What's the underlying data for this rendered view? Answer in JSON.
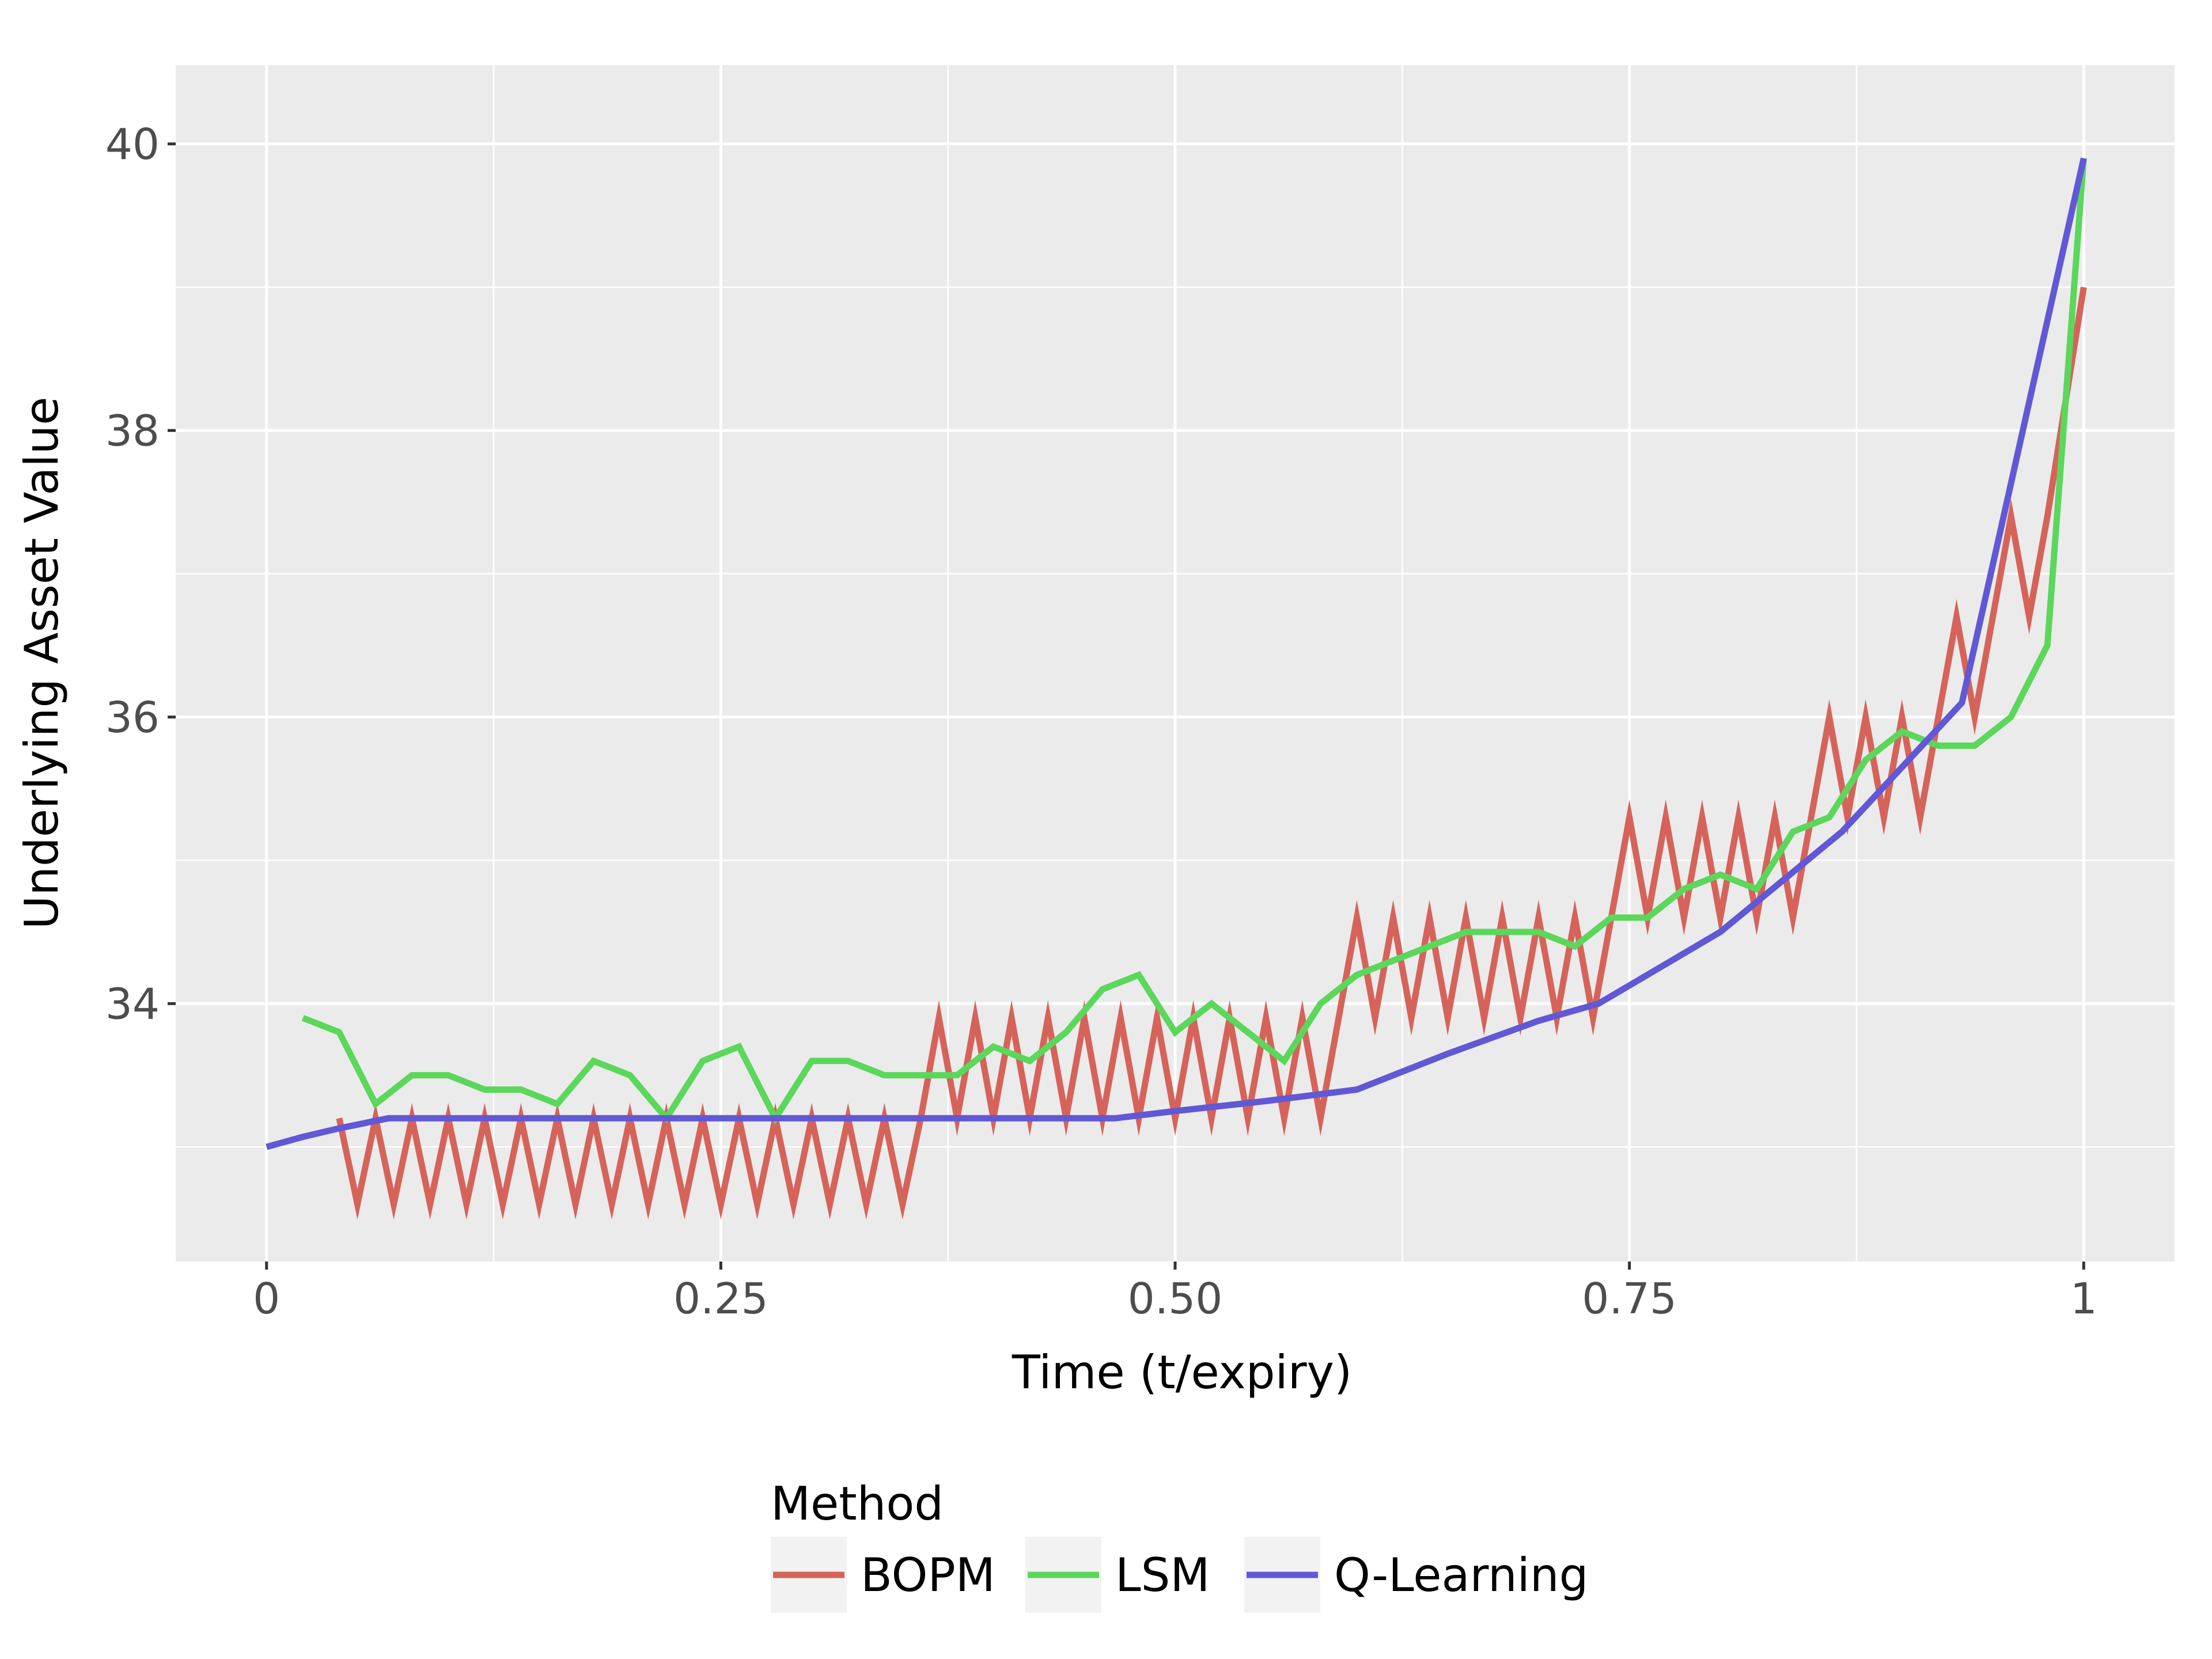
{
  "chart_data": {
    "type": "line",
    "xlabel": "Time (t/expiry)",
    "ylabel": "Underlying Asset Value",
    "xlim": [
      -0.05,
      1.05
    ],
    "ylim": [
      32.2,
      40.55
    ],
    "x_ticks": [
      0,
      0.25,
      0.5,
      0.75,
      1
    ],
    "x_tick_labels": [
      "0",
      "0.25",
      "0.50",
      "0.75",
      "1"
    ],
    "y_ticks": [
      34,
      36,
      38,
      40
    ],
    "y_tick_labels": [
      "34",
      "36",
      "38",
      "40"
    ],
    "grid": true,
    "legend": {
      "title": "Method",
      "position": "bottom"
    },
    "series": [
      {
        "name": "BOPM",
        "color": "#D6635A",
        "x": [
          0.04,
          0.05,
          0.06,
          0.07,
          0.08,
          0.09,
          0.1,
          0.11,
          0.12,
          0.13,
          0.14,
          0.15,
          0.16,
          0.17,
          0.18,
          0.19,
          0.2,
          0.21,
          0.22,
          0.23,
          0.24,
          0.25,
          0.26,
          0.27,
          0.28,
          0.29,
          0.3,
          0.31,
          0.32,
          0.33,
          0.34,
          0.35,
          0.36,
          0.37,
          0.38,
          0.39,
          0.4,
          0.41,
          0.42,
          0.43,
          0.44,
          0.45,
          0.46,
          0.47,
          0.48,
          0.49,
          0.5,
          0.51,
          0.52,
          0.53,
          0.54,
          0.55,
          0.56,
          0.57,
          0.58,
          0.59,
          0.6,
          0.61,
          0.62,
          0.63,
          0.64,
          0.65,
          0.66,
          0.67,
          0.68,
          0.69,
          0.7,
          0.71,
          0.72,
          0.73,
          0.74,
          0.75,
          0.76,
          0.77,
          0.78,
          0.79,
          0.8,
          0.81,
          0.82,
          0.83,
          0.84,
          0.85,
          0.86,
          0.87,
          0.88,
          0.89,
          0.9,
          0.91,
          0.92,
          0.93,
          0.94,
          0.95,
          0.96,
          0.97,
          0.98,
          0.99,
          1.0
        ],
        "values": [
          33.2,
          32.6,
          33.2,
          32.6,
          33.2,
          32.6,
          33.2,
          32.6,
          33.2,
          32.6,
          33.2,
          32.6,
          33.2,
          32.6,
          33.2,
          32.6,
          33.2,
          32.6,
          33.2,
          32.6,
          33.2,
          32.6,
          33.2,
          32.6,
          33.2,
          32.6,
          33.2,
          32.6,
          33.2,
          32.6,
          33.2,
          32.6,
          33.2,
          33.9,
          33.2,
          33.9,
          33.2,
          33.9,
          33.2,
          33.9,
          33.2,
          33.9,
          33.2,
          33.9,
          33.2,
          33.9,
          33.2,
          33.9,
          33.2,
          33.9,
          33.2,
          33.9,
          33.2,
          33.9,
          33.2,
          33.9,
          34.6,
          33.9,
          34.6,
          33.9,
          34.6,
          33.9,
          34.6,
          33.9,
          34.6,
          33.9,
          34.6,
          33.9,
          34.6,
          33.9,
          34.6,
          35.3,
          34.6,
          35.3,
          34.6,
          35.3,
          34.6,
          35.3,
          34.6,
          35.3,
          34.6,
          35.3,
          36.0,
          35.3,
          36.0,
          35.3,
          36.0,
          35.3,
          36.0,
          36.7,
          36.0,
          36.7,
          37.4,
          36.7,
          37.4,
          38.2,
          39.0
        ]
      },
      {
        "name": "LSM",
        "color": "#5BD75B",
        "x": [
          0.02,
          0.04,
          0.06,
          0.08,
          0.1,
          0.12,
          0.14,
          0.16,
          0.18,
          0.2,
          0.22,
          0.24,
          0.26,
          0.28,
          0.3,
          0.32,
          0.34,
          0.36,
          0.38,
          0.4,
          0.42,
          0.44,
          0.46,
          0.48,
          0.5,
          0.52,
          0.54,
          0.56,
          0.58,
          0.6,
          0.62,
          0.64,
          0.66,
          0.68,
          0.7,
          0.72,
          0.74,
          0.76,
          0.78,
          0.8,
          0.82,
          0.84,
          0.86,
          0.88,
          0.9,
          0.92,
          0.94,
          0.96,
          0.98,
          1.0
        ],
        "values": [
          33.9,
          33.8,
          33.3,
          33.5,
          33.5,
          33.4,
          33.4,
          33.3,
          33.6,
          33.5,
          33.2,
          33.6,
          33.7,
          33.2,
          33.6,
          33.6,
          33.5,
          33.5,
          33.5,
          33.7,
          33.6,
          33.8,
          34.1,
          34.2,
          33.8,
          34.0,
          33.8,
          33.6,
          34.0,
          34.2,
          34.3,
          34.4,
          34.5,
          34.5,
          34.5,
          34.4,
          34.6,
          34.6,
          34.8,
          34.9,
          34.8,
          35.2,
          35.3,
          35.7,
          35.9,
          35.8,
          35.8,
          36.0,
          36.5,
          39.9
        ]
      },
      {
        "name": "Q-Learning",
        "color": "#6158D6",
        "x": [
          0.0,
          0.02,
          0.04,
          0.067,
          0.1,
          0.2,
          0.3,
          0.4,
          0.467,
          0.5,
          0.55,
          0.6,
          0.65,
          0.7,
          0.733,
          0.8,
          0.867,
          0.933,
          1.0
        ],
        "values": [
          33.0,
          33.07,
          33.13,
          33.2,
          33.2,
          33.2,
          33.2,
          33.2,
          33.2,
          33.25,
          33.32,
          33.4,
          33.65,
          33.88,
          34.0,
          34.5,
          35.2,
          36.1,
          39.9
        ]
      }
    ]
  }
}
